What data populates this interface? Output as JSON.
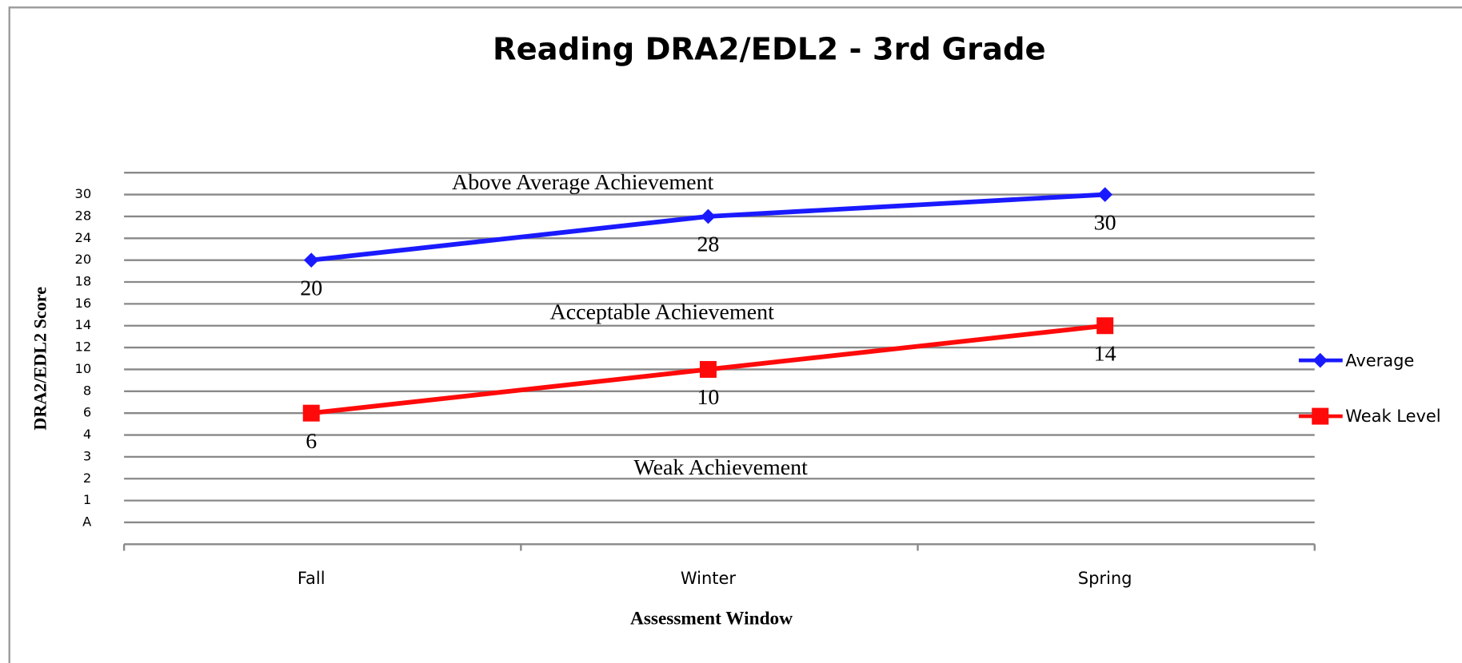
{
  "chart_data": {
    "type": "line",
    "title": "Reading DRA2/EDL2 - 3rd Grade",
    "xlabel": "Assessment Window",
    "ylabel": "DRA2/EDL2 Score",
    "categories": [
      "Fall",
      "Winter",
      "Spring"
    ],
    "series": [
      {
        "name": "Average",
        "color": "#1a1aff",
        "marker": "diamond",
        "values": [
          20,
          28,
          30
        ]
      },
      {
        "name": "Weak Level",
        "color": "#ff0a0a",
        "marker": "square",
        "values": [
          6,
          10,
          14
        ]
      }
    ],
    "yticks": [
      "A",
      1,
      2,
      3,
      4,
      6,
      8,
      10,
      12,
      14,
      16,
      18,
      20,
      24,
      28,
      30
    ],
    "annotations": [
      "Above Average Achievement",
      "Acceptable Achievement",
      "Weak Achievement"
    ],
    "grid": true,
    "legend": "right"
  }
}
